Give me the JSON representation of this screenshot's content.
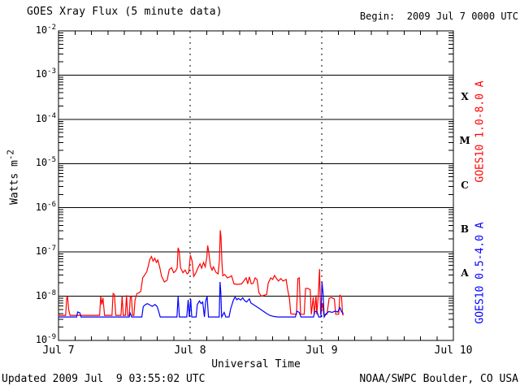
{
  "header": {
    "title": "GOES Xray Flux (5 minute data)",
    "begin": "Begin:  2009 Jul 7 0000 UTC"
  },
  "footer": {
    "updated": "Updated 2009 Jul  9 03:55:02 UTC",
    "credit": "NOAA/SWPC Boulder, CO USA"
  },
  "colors": {
    "background": "#ffffff",
    "axis": "#000000",
    "long_channel": "#ff0000",
    "short_channel": "#0000ff"
  },
  "chart_data": {
    "type": "line",
    "title": "GOES Xray Flux (5 minute data)",
    "xlabel": "Universal Time",
    "ylabel": {
      "text": "Watts m",
      "sup": "-2"
    },
    "x_unit": "hours since 2009 Jul 7 0000 UTC",
    "x_range_hours": [
      0,
      72
    ],
    "x_ticks": [
      {
        "hour": 0,
        "label": "Jul 7"
      },
      {
        "hour": 24,
        "label": "Jul 8"
      },
      {
        "hour": 48,
        "label": "Jul 9"
      },
      {
        "hour": 72,
        "label": "Jul 10"
      }
    ],
    "minor_tick_hours": 3,
    "day_gridline_hours": [
      24,
      48
    ],
    "ylog_range": [
      -9,
      -2
    ],
    "y_tick_exponents": [
      -2,
      -3,
      -4,
      -5,
      -6,
      -7,
      -8,
      -9
    ],
    "grid": {
      "horizontal": "solid line at every decade",
      "vertical": "dashed line at interior day boundaries",
      "legend_position": "right margin, rotated"
    },
    "flare_classes": [
      {
        "label": "X",
        "log_center": -3.5
      },
      {
        "label": "M",
        "log_center": -4.5
      },
      {
        "label": "C",
        "log_center": -5.5
      },
      {
        "label": "B",
        "log_center": -6.5
      },
      {
        "label": "A",
        "log_center": -7.5
      }
    ],
    "series": [
      {
        "name": "GOES10 long channel",
        "label": "GOES10 1.0-8.0 A",
        "color": "#ff0000",
        "points": [
          [
            0,
            3.7e-09
          ],
          [
            1.3,
            3.7e-09
          ],
          [
            1.5,
            9e-09
          ],
          [
            1.65,
            1e-08
          ],
          [
            1.85,
            5e-09
          ],
          [
            2.1,
            3.7e-09
          ],
          [
            5.0,
            3.7e-09
          ],
          [
            7.5,
            3.7e-09
          ],
          [
            7.7,
            1e-08
          ],
          [
            7.9,
            6.5e-09
          ],
          [
            8.1,
            9.2e-09
          ],
          [
            8.4,
            3.7e-09
          ],
          [
            9.75,
            3.7e-09
          ],
          [
            9.95,
            1.15e-08
          ],
          [
            10.2,
            1.1e-08
          ],
          [
            10.45,
            3.7e-09
          ],
          [
            11.4,
            3.7e-09
          ],
          [
            11.6,
            1e-08
          ],
          [
            11.8,
            3.7e-09
          ],
          [
            12.2,
            3.7e-09
          ],
          [
            12.4,
            1.05e-08
          ],
          [
            12.6,
            3.7e-09
          ],
          [
            12.9,
            3.7e-09
          ],
          [
            13.1,
            1e-08
          ],
          [
            13.3,
            9.6e-09
          ],
          [
            13.5,
            3.7e-09
          ],
          [
            13.75,
            3.7e-09
          ],
          [
            13.95,
            8.2e-09
          ],
          [
            14.3,
            1.15e-08
          ],
          [
            14.7,
            1.2e-08
          ],
          [
            15.0,
            1.3e-08
          ],
          [
            15.35,
            2.6e-08
          ],
          [
            15.7,
            3e-08
          ],
          [
            16.1,
            3.6e-08
          ],
          [
            16.4,
            5e-08
          ],
          [
            16.65,
            6.8e-08
          ],
          [
            16.95,
            7.9e-08
          ],
          [
            17.25,
            6.2e-08
          ],
          [
            17.55,
            7.2e-08
          ],
          [
            17.85,
            5.8e-08
          ],
          [
            18.1,
            6.6e-08
          ],
          [
            18.45,
            4.6e-08
          ],
          [
            18.8,
            2.8e-08
          ],
          [
            19.3,
            2.1e-08
          ],
          [
            19.8,
            2.3e-08
          ],
          [
            20.2,
            4e-08
          ],
          [
            20.6,
            4.4e-08
          ],
          [
            21.0,
            3.4e-08
          ],
          [
            21.35,
            3.7e-08
          ],
          [
            21.65,
            4.4e-08
          ],
          [
            21.8,
            1.25e-07
          ],
          [
            22.0,
            1.05e-07
          ],
          [
            22.25,
            4.4e-08
          ],
          [
            22.7,
            3.4e-08
          ],
          [
            23.1,
            3.9e-08
          ],
          [
            23.45,
            3.2e-08
          ],
          [
            23.75,
            3.4e-08
          ],
          [
            24.05,
            8.5e-08
          ],
          [
            24.35,
            6.3e-08
          ],
          [
            24.65,
            2.8e-08
          ],
          [
            25.0,
            3.3e-08
          ],
          [
            25.4,
            4.3e-08
          ],
          [
            25.8,
            5.4e-08
          ],
          [
            26.1,
            4.3e-08
          ],
          [
            26.45,
            5.8e-08
          ],
          [
            26.75,
            4.6e-08
          ],
          [
            27.05,
            7.8e-08
          ],
          [
            27.2,
            1.4e-07
          ],
          [
            27.4,
            1e-07
          ],
          [
            27.7,
            4.8e-08
          ],
          [
            28.0,
            3.9e-08
          ],
          [
            28.25,
            4.6e-08
          ],
          [
            28.7,
            3.5e-08
          ],
          [
            29.1,
            3.2e-08
          ],
          [
            29.35,
            6.6e-08
          ],
          [
            29.5,
            3.1e-07
          ],
          [
            29.63,
            2.2e-07
          ],
          [
            29.8,
            6e-08
          ],
          [
            29.95,
            2.9e-08
          ],
          [
            30.3,
            3.1e-08
          ],
          [
            30.8,
            2.6e-08
          ],
          [
            31.25,
            2.75e-08
          ],
          [
            31.55,
            2.9e-08
          ],
          [
            32.0,
            1.9e-08
          ],
          [
            32.6,
            1.85e-08
          ],
          [
            33.4,
            1.9e-08
          ],
          [
            34.2,
            2.6e-08
          ],
          [
            34.5,
            1.9e-08
          ],
          [
            34.8,
            2.75e-08
          ],
          [
            35.15,
            1.9e-08
          ],
          [
            35.5,
            1.95e-08
          ],
          [
            35.85,
            2.6e-08
          ],
          [
            36.2,
            2.4e-08
          ],
          [
            36.55,
            1.2e-08
          ],
          [
            37.0,
            1e-08
          ],
          [
            37.5,
            1.05e-08
          ],
          [
            37.95,
            1.1e-08
          ],
          [
            38.25,
            2e-08
          ],
          [
            38.7,
            2.6e-08
          ],
          [
            39.05,
            2.4e-08
          ],
          [
            39.4,
            2.95e-08
          ],
          [
            39.75,
            2.5e-08
          ],
          [
            40.1,
            2.2e-08
          ],
          [
            40.55,
            2.5e-08
          ],
          [
            40.95,
            2.2e-08
          ],
          [
            41.5,
            2.4e-08
          ],
          [
            41.8,
            1.4e-08
          ],
          [
            42.1,
            9e-09
          ],
          [
            42.35,
            4e-09
          ],
          [
            43.4,
            3.9e-09
          ],
          [
            43.65,
            2.5e-08
          ],
          [
            43.9,
            2.6e-08
          ],
          [
            44.15,
            3.9e-09
          ],
          [
            44.8,
            3.9e-09
          ],
          [
            45.05,
            1.5e-08
          ],
          [
            45.5,
            1.5e-08
          ],
          [
            45.9,
            1.4e-08
          ],
          [
            46.1,
            3.9e-09
          ],
          [
            46.45,
            9.5e-09
          ],
          [
            46.65,
            3.9e-09
          ],
          [
            46.95,
            1.05e-08
          ],
          [
            47.1,
            3.9e-09
          ],
          [
            47.4,
            1.15e-08
          ],
          [
            47.6,
            4.1e-08
          ],
          [
            47.8,
            3.9e-09
          ],
          [
            48.15,
            7e-09
          ],
          [
            48.35,
            3.9e-09
          ],
          [
            48.95,
            3.9e-09
          ],
          [
            49.35,
            9e-09
          ],
          [
            49.8,
            9.3e-09
          ],
          [
            50.3,
            8.7e-09
          ],
          [
            50.55,
            3.9e-09
          ],
          [
            51.1,
            3.9e-09
          ],
          [
            51.3,
            1.05e-08
          ],
          [
            51.6,
            1e-08
          ],
          [
            51.8,
            3.9e-09
          ],
          [
            51.95,
            3.7e-09
          ]
        ]
      },
      {
        "name": "GOES10 short channel",
        "label": "GOES10 0.5-4.0 A",
        "color": "#0000ff",
        "points": [
          [
            0,
            3.4e-09
          ],
          [
            3.3,
            3.4e-09
          ],
          [
            3.5,
            4.4e-09
          ],
          [
            3.9,
            4.2e-09
          ],
          [
            4.1,
            3.4e-09
          ],
          [
            12.9,
            3.4e-09
          ],
          [
            13.05,
            4.2e-09
          ],
          [
            13.35,
            3.4e-09
          ],
          [
            15.2,
            3.4e-09
          ],
          [
            15.45,
            5.8e-09
          ],
          [
            15.8,
            6.4e-09
          ],
          [
            16.2,
            6.8e-09
          ],
          [
            16.7,
            6.3e-09
          ],
          [
            17.1,
            5.9e-09
          ],
          [
            17.6,
            6.5e-09
          ],
          [
            18.0,
            5.8e-09
          ],
          [
            18.3,
            4.4e-09
          ],
          [
            18.55,
            3.4e-09
          ],
          [
            21.6,
            3.4e-09
          ],
          [
            21.8,
            1e-08
          ],
          [
            22.05,
            3.4e-09
          ],
          [
            23.4,
            3.4e-09
          ],
          [
            23.65,
            8.3e-09
          ],
          [
            23.85,
            3.4e-09
          ],
          [
            24.1,
            8.7e-09
          ],
          [
            24.3,
            3.4e-09
          ],
          [
            25.1,
            3.4e-09
          ],
          [
            25.3,
            6.5e-09
          ],
          [
            25.7,
            7.8e-09
          ],
          [
            26.0,
            6.8e-09
          ],
          [
            26.3,
            7.4e-09
          ],
          [
            26.6,
            3.4e-09
          ],
          [
            26.85,
            7.8e-09
          ],
          [
            27.1,
            1e-08
          ],
          [
            27.35,
            3.4e-09
          ],
          [
            29.3,
            3.4e-09
          ],
          [
            29.45,
            2.1e-08
          ],
          [
            29.6,
            1.2e-08
          ],
          [
            29.75,
            3.4e-09
          ],
          [
            30.2,
            4.3e-09
          ],
          [
            30.5,
            3.4e-09
          ],
          [
            31.1,
            3.4e-09
          ],
          [
            31.4,
            5.2e-09
          ],
          [
            31.9,
            8.2e-09
          ],
          [
            32.2,
            9.6e-09
          ],
          [
            32.5,
            8.3e-09
          ],
          [
            32.8,
            8.9e-09
          ],
          [
            33.2,
            8.2e-09
          ],
          [
            33.6,
            9.2e-09
          ],
          [
            33.9,
            8e-09
          ],
          [
            34.3,
            7.4e-09
          ],
          [
            34.8,
            8.7e-09
          ],
          [
            35.1,
            7e-09
          ],
          [
            35.6,
            6.4e-09
          ],
          [
            36.1,
            5.8e-09
          ],
          [
            36.7,
            5.2e-09
          ],
          [
            37.3,
            4.6e-09
          ],
          [
            37.9,
            4.1e-09
          ],
          [
            38.5,
            3.7e-09
          ],
          [
            39.2,
            3.5e-09
          ],
          [
            40.0,
            3.4e-09
          ],
          [
            43.2,
            3.4e-09
          ],
          [
            43.45,
            4.6e-09
          ],
          [
            43.9,
            4.3e-09
          ],
          [
            44.2,
            3.4e-09
          ],
          [
            46.5,
            3.4e-09
          ],
          [
            46.7,
            4.4e-09
          ],
          [
            47.1,
            4.6e-09
          ],
          [
            47.45,
            3.4e-09
          ],
          [
            47.85,
            3.4e-09
          ],
          [
            48.05,
            2.1e-08
          ],
          [
            48.25,
            1.1e-08
          ],
          [
            48.45,
            3.4e-09
          ],
          [
            48.8,
            4e-09
          ],
          [
            49.3,
            4.5e-09
          ],
          [
            49.9,
            4.3e-09
          ],
          [
            50.4,
            4.6e-09
          ],
          [
            50.9,
            4.4e-09
          ],
          [
            51.3,
            5.5e-09
          ],
          [
            51.6,
            4.5e-09
          ],
          [
            51.95,
            4e-09
          ]
        ]
      }
    ]
  }
}
